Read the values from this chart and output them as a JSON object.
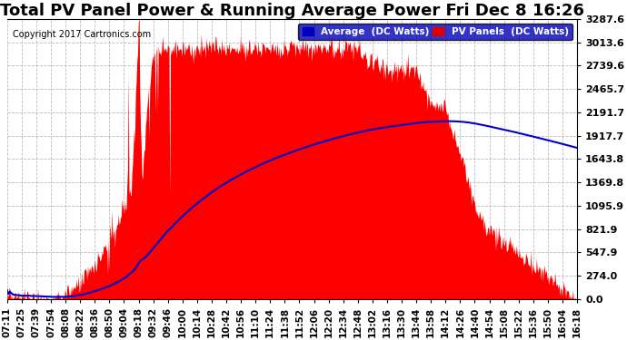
{
  "title": "Total PV Panel Power & Running Average Power Fri Dec 8 16:26",
  "copyright": "Copyright 2017 Cartronics.com",
  "legend_labels": [
    "Average  (DC Watts)",
    "PV Panels  (DC Watts)"
  ],
  "legend_colors": [
    "#0000bb",
    "#dd0000"
  ],
  "yticks": [
    0.0,
    274.0,
    547.9,
    821.9,
    1095.9,
    1369.8,
    1643.8,
    1917.7,
    2191.7,
    2465.7,
    2739.6,
    3013.6,
    3287.6
  ],
  "ytick_labels": [
    "0.0",
    "274.0",
    "547.9",
    "821.9",
    "1095.9",
    "1369.8",
    "1643.8",
    "1917.7",
    "2191.7",
    "2465.7",
    "2739.6",
    "3013.6",
    "3287.6"
  ],
  "xtick_labels": [
    "07:11",
    "07:25",
    "07:39",
    "07:54",
    "08:08",
    "08:22",
    "08:36",
    "08:50",
    "09:04",
    "09:18",
    "09:32",
    "09:46",
    "10:00",
    "10:14",
    "10:28",
    "10:42",
    "10:56",
    "11:10",
    "11:24",
    "11:38",
    "11:52",
    "12:06",
    "12:20",
    "12:34",
    "12:48",
    "13:02",
    "13:16",
    "13:30",
    "13:44",
    "13:58",
    "14:12",
    "14:26",
    "14:40",
    "14:54",
    "15:08",
    "15:22",
    "15:36",
    "15:50",
    "16:04",
    "16:18"
  ],
  "pv_color": "#ff0000",
  "avg_color": "#0000cc",
  "background_color": "#ffffff",
  "grid_color": "#aaaaaa",
  "title_fontsize": 13,
  "tick_fontsize": 8,
  "ymax": 3287.6
}
